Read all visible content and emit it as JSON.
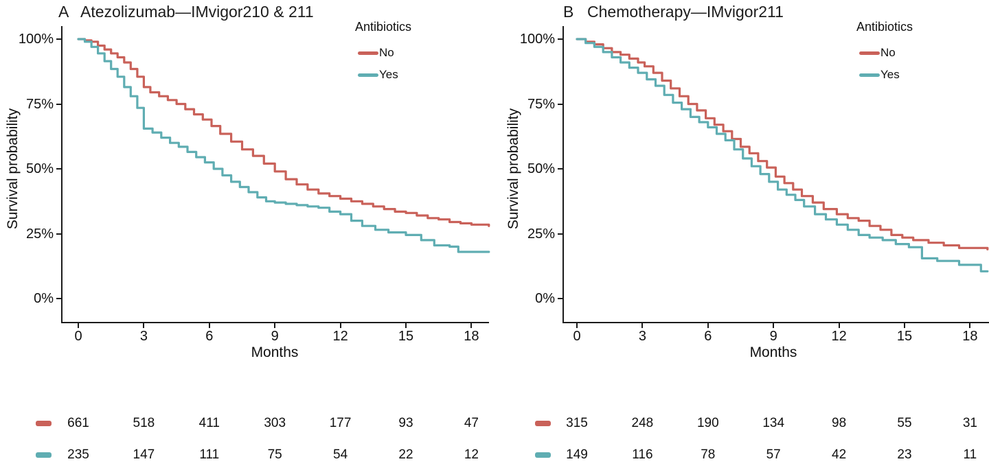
{
  "figure_bg": "#ffffff",
  "axis_color": "#1a1a1a",
  "chart_data": [
    {
      "panel_letter": "A",
      "title": "Atezolizumab—IMvigor210 & 211",
      "type": "line",
      "subtype": "kaplan_meier_step",
      "xlabel": "Months",
      "ylabel": "Survival probability",
      "x_ticks": [
        "0",
        "3",
        "6",
        "9",
        "12",
        "15",
        "18"
      ],
      "y_ticks": [
        "100%",
        "75%",
        "50%",
        "25%",
        "0%"
      ],
      "x_range": [
        0,
        19
      ],
      "y_range_percent": [
        0,
        100
      ],
      "grid": "off",
      "legend": {
        "title": "Antibiotics",
        "position": "top-right-inside"
      },
      "series": [
        {
          "name": "No",
          "color": "#C96159",
          "km_percent": [
            [
              0,
              100
            ],
            [
              0.3,
              99.5
            ],
            [
              0.6,
              99
            ],
            [
              0.9,
              97.5
            ],
            [
              1.2,
              96
            ],
            [
              1.5,
              94.5
            ],
            [
              1.8,
              93
            ],
            [
              2.1,
              91
            ],
            [
              2.4,
              88.5
            ],
            [
              2.7,
              85.5
            ],
            [
              3.0,
              81.5
            ],
            [
              3.3,
              79.5
            ],
            [
              3.7,
              78
            ],
            [
              4.1,
              76.5
            ],
            [
              4.5,
              75
            ],
            [
              4.9,
              73
            ],
            [
              5.3,
              71
            ],
            [
              5.7,
              69
            ],
            [
              6.1,
              66.5
            ],
            [
              6.5,
              63.5
            ],
            [
              7.0,
              60.5
            ],
            [
              7.5,
              57.5
            ],
            [
              8.0,
              55
            ],
            [
              8.5,
              52
            ],
            [
              9.0,
              49
            ],
            [
              9.5,
              46
            ],
            [
              10.0,
              44
            ],
            [
              10.5,
              42
            ],
            [
              11.0,
              40.5
            ],
            [
              11.5,
              39.5
            ],
            [
              12.0,
              38.5
            ],
            [
              12.5,
              37.5
            ],
            [
              13.0,
              36.5
            ],
            [
              13.5,
              35.5
            ],
            [
              14.0,
              34.5
            ],
            [
              14.5,
              33.5
            ],
            [
              15.0,
              33
            ],
            [
              15.5,
              32
            ],
            [
              16.0,
              31
            ],
            [
              16.5,
              30.5
            ],
            [
              17.0,
              29.5
            ],
            [
              17.5,
              29
            ],
            [
              18.0,
              28.5
            ],
            [
              18.8,
              28
            ]
          ],
          "at_risk": [
            661,
            518,
            411,
            303,
            177,
            93,
            47
          ]
        },
        {
          "name": "Yes",
          "color": "#5FADB2",
          "km_percent": [
            [
              0,
              100
            ],
            [
              0.3,
              99
            ],
            [
              0.6,
              97
            ],
            [
              0.9,
              94.5
            ],
            [
              1.2,
              91.5
            ],
            [
              1.5,
              88.5
            ],
            [
              1.8,
              85.5
            ],
            [
              2.1,
              81.5
            ],
            [
              2.4,
              78
            ],
            [
              2.7,
              73.5
            ],
            [
              3.0,
              65.5
            ],
            [
              3.4,
              64
            ],
            [
              3.8,
              62
            ],
            [
              4.2,
              60
            ],
            [
              4.6,
              58.5
            ],
            [
              5.0,
              56.5
            ],
            [
              5.4,
              54.5
            ],
            [
              5.8,
              52.5
            ],
            [
              6.2,
              50
            ],
            [
              6.6,
              47.5
            ],
            [
              7.0,
              45
            ],
            [
              7.4,
              43
            ],
            [
              7.8,
              41
            ],
            [
              8.2,
              39
            ],
            [
              8.6,
              37.5
            ],
            [
              9.0,
              37
            ],
            [
              9.5,
              36.5
            ],
            [
              10.0,
              36
            ],
            [
              10.5,
              35.5
            ],
            [
              11.0,
              35
            ],
            [
              11.5,
              33.5
            ],
            [
              12.0,
              32.5
            ],
            [
              12.5,
              30
            ],
            [
              13.0,
              28
            ],
            [
              13.6,
              26.5
            ],
            [
              14.2,
              25.5
            ],
            [
              15.0,
              24.5
            ],
            [
              15.7,
              22.5
            ],
            [
              16.3,
              20.5
            ],
            [
              17.0,
              20
            ],
            [
              17.4,
              18
            ],
            [
              18.8,
              18
            ]
          ],
          "at_risk": [
            235,
            147,
            111,
            75,
            54,
            22,
            12
          ]
        }
      ],
      "at_risk_months": [
        0,
        3,
        6,
        9,
        12,
        15,
        18
      ]
    },
    {
      "panel_letter": "B",
      "title": "Chemotherapy—IMvigor211",
      "type": "line",
      "subtype": "kaplan_meier_step",
      "xlabel": "Months",
      "ylabel": "Survival probability",
      "x_ticks": [
        "0",
        "3",
        "6",
        "9",
        "12",
        "15",
        "18"
      ],
      "y_ticks": [
        "100%",
        "75%",
        "50%",
        "25%",
        "0%"
      ],
      "x_range": [
        0,
        19
      ],
      "y_range_percent": [
        0,
        100
      ],
      "grid": "off",
      "legend": {
        "title": "Antibiotics",
        "position": "top-right-inside"
      },
      "series": [
        {
          "name": "No",
          "color": "#C96159",
          "km_percent": [
            [
              0,
              100
            ],
            [
              0.4,
              99
            ],
            [
              0.8,
              98
            ],
            [
              1.2,
              96.5
            ],
            [
              1.6,
              95
            ],
            [
              2.0,
              94
            ],
            [
              2.4,
              92.5
            ],
            [
              2.8,
              91
            ],
            [
              3.1,
              89.5
            ],
            [
              3.5,
              87
            ],
            [
              3.9,
              84
            ],
            [
              4.3,
              81
            ],
            [
              4.7,
              78
            ],
            [
              5.1,
              75
            ],
            [
              5.5,
              72.5
            ],
            [
              5.9,
              69.5
            ],
            [
              6.3,
              67
            ],
            [
              6.7,
              64.5
            ],
            [
              7.1,
              61.5
            ],
            [
              7.5,
              58.5
            ],
            [
              7.9,
              56
            ],
            [
              8.3,
              53
            ],
            [
              8.7,
              50.5
            ],
            [
              9.1,
              47
            ],
            [
              9.5,
              44.5
            ],
            [
              9.9,
              42
            ],
            [
              10.3,
              39.5
            ],
            [
              10.8,
              37
            ],
            [
              11.3,
              34.5
            ],
            [
              11.9,
              32.5
            ],
            [
              12.4,
              31
            ],
            [
              12.9,
              30
            ],
            [
              13.4,
              28
            ],
            [
              13.9,
              26.5
            ],
            [
              14.4,
              24.5
            ],
            [
              14.9,
              23.5
            ],
            [
              15.4,
              22.5
            ],
            [
              16.1,
              21.5
            ],
            [
              16.8,
              20.5
            ],
            [
              17.5,
              19.5
            ],
            [
              18.8,
              19
            ]
          ],
          "at_risk": [
            315,
            248,
            190,
            134,
            98,
            55,
            31
          ]
        },
        {
          "name": "Yes",
          "color": "#5FADB2",
          "km_percent": [
            [
              0,
              100
            ],
            [
              0.4,
              98.5
            ],
            [
              0.8,
              97
            ],
            [
              1.2,
              95
            ],
            [
              1.6,
              93
            ],
            [
              2.0,
              91
            ],
            [
              2.4,
              89
            ],
            [
              2.8,
              87
            ],
            [
              3.2,
              84.5
            ],
            [
              3.6,
              82
            ],
            [
              4.0,
              78.5
            ],
            [
              4.4,
              75.5
            ],
            [
              4.8,
              73
            ],
            [
              5.2,
              70
            ],
            [
              5.6,
              68
            ],
            [
              6.0,
              66
            ],
            [
              6.4,
              63.5
            ],
            [
              6.8,
              61
            ],
            [
              7.2,
              57.5
            ],
            [
              7.6,
              54
            ],
            [
              8.0,
              51
            ],
            [
              8.4,
              48
            ],
            [
              8.8,
              45
            ],
            [
              9.2,
              42
            ],
            [
              9.6,
              40
            ],
            [
              10.0,
              38
            ],
            [
              10.4,
              35.5
            ],
            [
              10.9,
              32.5
            ],
            [
              11.4,
              30.5
            ],
            [
              11.9,
              28.5
            ],
            [
              12.4,
              26.5
            ],
            [
              12.9,
              24.5
            ],
            [
              13.4,
              23.5
            ],
            [
              14.0,
              22.5
            ],
            [
              14.6,
              21
            ],
            [
              15.2,
              19.8
            ],
            [
              15.8,
              15.5
            ],
            [
              16.5,
              14.5
            ],
            [
              17.5,
              13
            ],
            [
              18.5,
              10.5
            ],
            [
              18.8,
              10.5
            ]
          ],
          "at_risk": [
            149,
            116,
            78,
            57,
            42,
            23,
            11
          ]
        }
      ],
      "at_risk_months": [
        0,
        3,
        6,
        9,
        12,
        15,
        18
      ]
    }
  ]
}
